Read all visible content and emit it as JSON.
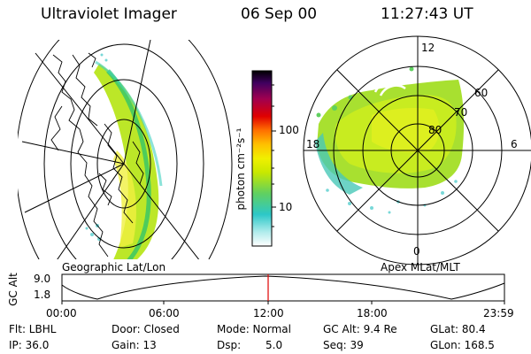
{
  "header": {
    "instrument": "Ultraviolet Imager",
    "date": "06 Sep 00",
    "time": "11:27:43 UT"
  },
  "colorbar": {
    "unit": "photon cm⁻²s⁻¹",
    "ticks": [
      "100",
      "10"
    ]
  },
  "polar_plot": {
    "mlt_labels": [
      "12",
      "18",
      "6",
      "0"
    ],
    "mlat_labels": [
      "60",
      "70",
      "80"
    ]
  },
  "panel_labels": {
    "geographic": "Geographic Lat/Lon",
    "apex": "Apex MLat/MLT"
  },
  "timeline": {
    "axis_label": "GC Alt",
    "y_ticks": [
      "9.0",
      "1.8"
    ],
    "x_ticks": [
      "00:00",
      "06:00",
      "12:00",
      "18:00",
      "23:59"
    ]
  },
  "info": {
    "flt": "Flt: LBHL",
    "door": "Door: Closed",
    "mode": "Mode: Normal",
    "gc_alt": "GC Alt: 9.4 Re",
    "glat": "GLat: 80.4",
    "ip": "IP: 36.0",
    "gain": "Gain: 13",
    "dsp_label": "Dsp:",
    "dsp_value": "5.0",
    "seq": "Seq: 39",
    "glon": "GLon: 168.5"
  }
}
